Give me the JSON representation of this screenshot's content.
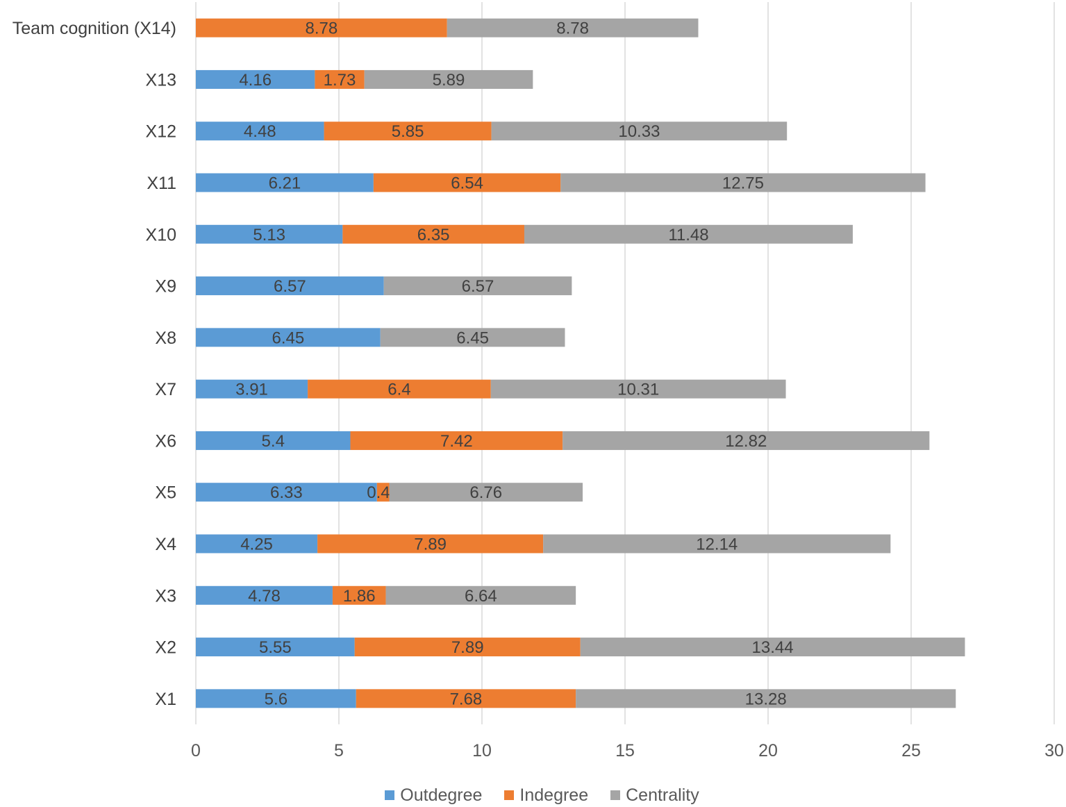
{
  "chart_data": {
    "type": "bar",
    "orientation": "horizontal",
    "stacked": true,
    "categories": [
      "Team cognition (X14)",
      "X13",
      "X12",
      "X11",
      "X10",
      "X9",
      "X8",
      "X7",
      "X6",
      "X5",
      "X4",
      "X3",
      "X2",
      "X1"
    ],
    "series": [
      {
        "name": "Outdegree",
        "color": "#5B9BD5",
        "values": [
          null,
          4.16,
          4.48,
          6.21,
          5.13,
          6.57,
          6.45,
          3.91,
          5.4,
          6.33,
          4.25,
          4.78,
          5.55,
          5.6
        ]
      },
      {
        "name": "Indegree",
        "color": "#ED7D31",
        "values": [
          8.78,
          1.73,
          5.85,
          6.54,
          6.35,
          null,
          null,
          6.4,
          7.42,
          0.43,
          7.89,
          1.86,
          7.89,
          7.68
        ]
      },
      {
        "name": "Centrality",
        "color": "#A5A5A5",
        "values": [
          8.78,
          5.89,
          10.33,
          12.75,
          11.48,
          6.57,
          6.45,
          10.31,
          12.82,
          6.76,
          12.14,
          6.64,
          13.44,
          13.28
        ]
      }
    ],
    "xlim": [
      0,
      30
    ],
    "xticks": [
      0,
      5,
      10,
      15,
      20,
      25,
      30
    ],
    "grid": "vertical",
    "legend": "bottom-center",
    "data_labels": true
  }
}
